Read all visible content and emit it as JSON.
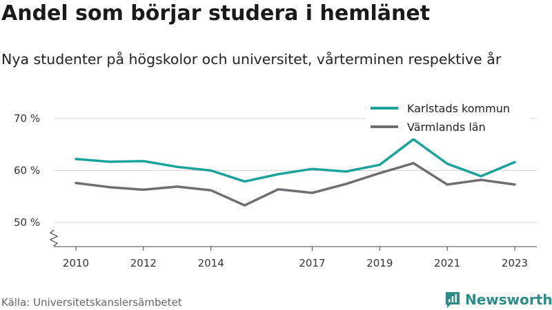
{
  "title": "Andel som börjar studera i hemlänet",
  "subtitle": "Nya studenter på högskolor och universitet, vårterminen respektive år",
  "source": "Källa: Universitetskanslersämbetet",
  "brand": {
    "name": "Newsworthy",
    "icon": "newsworthy-logo-icon",
    "color": "#2b8c8a"
  },
  "chart_data": {
    "type": "line",
    "x": [
      2010,
      2011,
      2012,
      2013,
      2014,
      2015,
      2016,
      2017,
      2018,
      2019,
      2020,
      2021,
      2022,
      2023
    ],
    "x_tick_labels": [
      "2010",
      "2012",
      "2014",
      "2017",
      "2019",
      "2021",
      "2023"
    ],
    "x_tick_values": [
      2010,
      2012,
      2014,
      2017,
      2019,
      2021,
      2023
    ],
    "y_ticks": [
      50,
      60,
      70
    ],
    "y_tick_labels": [
      "50 %",
      "60 %",
      "70 %"
    ],
    "ylim": [
      50,
      70
    ],
    "grid": true,
    "y_axis_break": true,
    "legend_position": "top-right",
    "series": [
      {
        "name": "Karlstads kommun",
        "color": "#1aa39a",
        "values": [
          62.2,
          61.7,
          61.8,
          60.7,
          60.0,
          57.9,
          59.3,
          60.3,
          59.8,
          61.1,
          66.0,
          61.3,
          58.9,
          61.6
        ]
      },
      {
        "name": "Värmlands län",
        "color": "#6e6e73",
        "values": [
          57.6,
          56.8,
          56.3,
          56.9,
          56.2,
          53.3,
          56.4,
          55.7,
          57.4,
          59.5,
          61.4,
          57.3,
          58.2,
          57.3
        ]
      }
    ]
  }
}
